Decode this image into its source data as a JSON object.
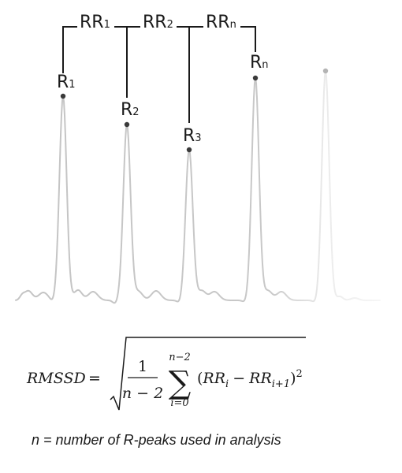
{
  "peaks": [
    {
      "letter": "R",
      "sub": "1"
    },
    {
      "letter": "R",
      "sub": "2"
    },
    {
      "letter": "R",
      "sub": "3"
    },
    {
      "letter": "R",
      "sub": "n"
    }
  ],
  "intervals": [
    {
      "letter": "RR",
      "sub": "1"
    },
    {
      "letter": "RR",
      "sub": "2"
    },
    {
      "letter": "RR",
      "sub": "n"
    }
  ],
  "formula": {
    "lhs": "RMSSD",
    "equals": "=",
    "numerator": "1",
    "denominator": "n − 2",
    "sum_symbol": "∑",
    "sum_upper": "n−2",
    "sum_lower": "i=0",
    "open_paren": "(",
    "rr": "RR",
    "sub_i": "i",
    "minus": "−",
    "sub_i1": "i+1",
    "close_paren": ")",
    "power": "2"
  },
  "note": "n = number of R-peaks used in analysis"
}
